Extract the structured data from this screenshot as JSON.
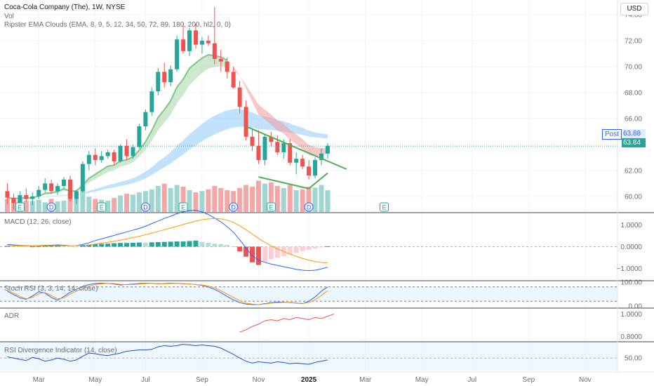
{
  "header": {
    "title": "Coca-Cola Company (The), 1W, NYSE",
    "vol_label": "Vol",
    "indicator_label": "Ripster EMA Clouds (EMA, 8, 9, 5, 12, 34, 50, 72, 89, 180, 200, hl2, 0, 0)",
    "currency": "USD"
  },
  "panes": {
    "macd_label": "MACD (12, 26, close)",
    "stoch_label": "Stoch RSI (3, 3, 14, 14, close)",
    "adr_label": "ADR",
    "rsi_div_label": "RSI Divergence Indicator (14, close)"
  },
  "price_tags": {
    "post_label": "Post",
    "post_price": "63.88",
    "last_price": "63.84"
  },
  "colors": {
    "up": "#26a69a",
    "down": "#ef5350",
    "vol_up": "#9fd6d1",
    "vol_down": "#f5a6a6",
    "ema_fast_cloud": "#a5d6a7",
    "ema_slow_cloud": "#90caf9",
    "ema_down_cloud": "#ef9a9a",
    "macd_line": "#2962ff",
    "signal_line": "#ff9800",
    "stoch_k": "#2962ff",
    "stoch_d": "#ff9800",
    "adr_line": "#ef5350",
    "rsi_div_line": "#1e4fc4",
    "trendline": "#4caf50",
    "earnings_marker": "#26a69a",
    "dividend_marker": "#2962ff"
  },
  "chart_data": [
    {
      "type": "candlestick",
      "title": "Coca-Cola Company (The), 1W, NYSE",
      "ylim": [
        58.8,
        74.6
      ],
      "yticks": [
        "74.00",
        "72.00",
        "70.00",
        "68.00",
        "66.00",
        "64.00",
        "62.00",
        "60.00"
      ],
      "ytick_values": [
        74,
        72,
        70,
        68,
        66,
        64,
        62,
        60
      ],
      "x_labels": [
        "Mar",
        "May",
        "Jul",
        "Sep",
        "Nov",
        "2025",
        "Mar",
        "May",
        "Jul",
        "Sep",
        "Nov"
      ],
      "x_label_weeks": [
        5,
        14,
        22,
        31,
        40,
        48,
        57,
        66,
        74,
        83,
        92
      ],
      "candles": [
        [
          60.4,
          61.0,
          59.4,
          59.9
        ],
        [
          59.9,
          60.2,
          59.0,
          59.5
        ],
        [
          59.5,
          60.4,
          59.2,
          60.1
        ],
        [
          60.1,
          60.6,
          59.6,
          59.8
        ],
        [
          59.8,
          60.3,
          59.3,
          60.0
        ],
        [
          60.0,
          60.8,
          59.8,
          60.5
        ],
        [
          60.5,
          61.4,
          60.3,
          61.0
        ],
        [
          61.0,
          61.3,
          60.2,
          60.4
        ],
        [
          60.4,
          61.0,
          60.1,
          60.8
        ],
        [
          60.8,
          61.5,
          60.6,
          61.3
        ],
        [
          61.3,
          61.6,
          59.6,
          59.8
        ],
        [
          59.8,
          60.5,
          59.4,
          60.4
        ],
        [
          60.4,
          62.7,
          60.3,
          62.5
        ],
        [
          62.5,
          63.5,
          62.0,
          63.2
        ],
        [
          63.2,
          63.7,
          62.4,
          62.8
        ],
        [
          62.8,
          63.5,
          62.6,
          63.1
        ],
        [
          63.1,
          63.6,
          62.9,
          63.4
        ],
        [
          63.4,
          63.6,
          62.4,
          62.7
        ],
        [
          62.7,
          64.0,
          62.6,
          63.9
        ],
        [
          63.9,
          64.4,
          62.8,
          63.1
        ],
        [
          63.1,
          64.0,
          62.9,
          63.8
        ],
        [
          63.8,
          65.6,
          63.7,
          65.4
        ],
        [
          65.4,
          66.7,
          65.1,
          66.5
        ],
        [
          66.5,
          68.4,
          66.2,
          68.1
        ],
        [
          68.1,
          69.9,
          67.8,
          69.6
        ],
        [
          69.6,
          70.3,
          68.4,
          68.8
        ],
        [
          68.8,
          70.1,
          68.5,
          69.8
        ],
        [
          69.8,
          72.4,
          69.6,
          72.1
        ],
        [
          72.1,
          73.4,
          71.0,
          71.2
        ],
        [
          71.2,
          73.0,
          70.8,
          72.8
        ],
        [
          72.8,
          73.3,
          71.4,
          71.7
        ],
        [
          71.7,
          72.3,
          71.0,
          72.0
        ],
        [
          72.0,
          72.4,
          71.6,
          71.8
        ],
        [
          71.8,
          74.6,
          70.2,
          70.6
        ],
        [
          70.6,
          71.3,
          69.6,
          70.4
        ],
        [
          70.4,
          70.7,
          69.1,
          69.6
        ],
        [
          69.6,
          70.0,
          68.3,
          68.4
        ],
        [
          68.4,
          68.9,
          66.4,
          66.9
        ],
        [
          66.9,
          67.4,
          64.3,
          64.6
        ],
        [
          64.6,
          65.2,
          63.5,
          63.9
        ],
        [
          63.9,
          65.1,
          62.5,
          62.8
        ],
        [
          62.8,
          64.8,
          62.4,
          64.6
        ],
        [
          64.6,
          65.0,
          63.9,
          64.2
        ],
        [
          64.2,
          64.7,
          63.2,
          63.4
        ],
        [
          63.4,
          64.4,
          62.9,
          64.1
        ],
        [
          64.1,
          64.4,
          62.4,
          62.6
        ],
        [
          62.6,
          63.4,
          61.7,
          62.9
        ],
        [
          62.9,
          63.2,
          62.1,
          62.3
        ],
        [
          62.3,
          62.8,
          61.3,
          61.6
        ],
        [
          61.6,
          63.0,
          61.4,
          62.8
        ],
        [
          62.8,
          63.7,
          62.4,
          63.3
        ],
        [
          63.3,
          64.1,
          62.9,
          63.9
        ]
      ],
      "volume": [
        0.3,
        0.28,
        0.27,
        0.26,
        0.25,
        0.28,
        0.22,
        0.3,
        0.24,
        0.26,
        0.45,
        0.3,
        0.55,
        0.35,
        0.3,
        0.28,
        0.26,
        0.32,
        0.38,
        0.42,
        0.4,
        0.45,
        0.48,
        0.52,
        0.6,
        0.65,
        0.55,
        0.62,
        0.58,
        0.5,
        0.45,
        0.48,
        0.52,
        0.6,
        0.55,
        0.5,
        0.48,
        0.55,
        0.62,
        0.58,
        0.72,
        0.65,
        0.68,
        0.6,
        0.55,
        0.62,
        0.5,
        0.52,
        0.58,
        0.56,
        0.62,
        0.5
      ],
      "events": [
        {
          "type": "E",
          "week": 2
        },
        {
          "type": "D",
          "week": 7
        },
        {
          "type": "E",
          "week": 15
        },
        {
          "type": "D",
          "week": 22
        },
        {
          "type": "E",
          "week": 28
        },
        {
          "type": "D",
          "week": 36
        },
        {
          "type": "E",
          "week": 42
        },
        {
          "type": "D",
          "week": 48
        },
        {
          "type": "E",
          "week": 60
        }
      ]
    },
    {
      "type": "line",
      "title": "MACD (12, 26, close)",
      "yticks": [
        "1.0000",
        "0.0000",
        "−1.0000"
      ],
      "ytick_values": [
        1.0,
        0.0,
        -1.0
      ],
      "ylim": [
        -1.5,
        1.5
      ],
      "histogram": [
        0.04,
        0.03,
        0.02,
        0.01,
        0.01,
        0.02,
        0.03,
        0.04,
        0.05,
        0.04,
        0.02,
        0.01,
        0.06,
        0.09,
        0.11,
        0.13,
        0.14,
        0.16,
        0.17,
        0.17,
        0.18,
        0.19,
        0.18,
        0.2,
        0.21,
        0.22,
        0.23,
        0.24,
        0.24,
        0.26,
        0.28,
        0.22,
        0.18,
        0.14,
        0.12,
        0.08,
        0.02,
        -0.22,
        -0.46,
        -0.72,
        -0.84,
        -0.7,
        -0.58,
        -0.5,
        -0.44,
        -0.36,
        -0.28,
        -0.2,
        -0.15,
        -0.09,
        -0.03,
        0.02
      ],
      "macd_line": [
        0.1,
        0.08,
        0.06,
        0.05,
        0.04,
        0.05,
        0.06,
        0.07,
        0.08,
        0.07,
        0.05,
        0.05,
        0.1,
        0.18,
        0.28,
        0.36,
        0.44,
        0.52,
        0.6,
        0.68,
        0.76,
        0.84,
        0.94,
        1.06,
        1.18,
        1.3,
        1.4,
        1.52,
        1.6,
        1.66,
        1.68,
        1.6,
        1.48,
        1.32,
        1.14,
        0.92,
        0.66,
        0.32,
        -0.06,
        -0.42,
        -0.62,
        -0.72,
        -0.8,
        -0.86,
        -0.92,
        -0.98,
        -1.04,
        -1.08,
        -1.1,
        -1.08,
        -1.02,
        -0.94
      ],
      "signal_line": [
        0.04,
        0.04,
        0.04,
        0.04,
        0.04,
        0.04,
        0.04,
        0.05,
        0.05,
        0.05,
        0.05,
        0.05,
        0.06,
        0.08,
        0.12,
        0.16,
        0.2,
        0.25,
        0.3,
        0.36,
        0.42,
        0.48,
        0.55,
        0.62,
        0.7,
        0.78,
        0.86,
        0.94,
        1.02,
        1.1,
        1.18,
        1.24,
        1.28,
        1.3,
        1.28,
        1.22,
        1.12,
        0.96,
        0.78,
        0.58,
        0.38,
        0.2,
        0.04,
        -0.1,
        -0.22,
        -0.34,
        -0.44,
        -0.54,
        -0.62,
        -0.68,
        -0.72,
        -0.74
      ]
    },
    {
      "type": "line",
      "title": "Stoch RSI (3, 3, 14, 14, close)",
      "yticks": [
        "100.00",
        "0.00"
      ],
      "ytick_values": [
        100,
        0
      ],
      "ylim": [
        0,
        100
      ],
      "k": [
        62,
        48,
        34,
        28,
        42,
        60,
        54,
        36,
        24,
        40,
        58,
        70,
        82,
        90,
        94,
        96,
        95,
        92,
        88,
        90,
        92,
        94,
        96,
        95,
        93,
        94,
        96,
        95,
        93,
        92,
        90,
        86,
        80,
        70,
        56,
        40,
        26,
        14,
        8,
        6,
        6,
        10,
        14,
        16,
        16,
        14,
        12,
        10,
        20,
        38,
        62,
        80
      ],
      "d": [
        66,
        54,
        40,
        30,
        36,
        52,
        56,
        44,
        30,
        34,
        50,
        62,
        74,
        84,
        90,
        93,
        95,
        94,
        91,
        89,
        90,
        92,
        94,
        95,
        94,
        93,
        94,
        95,
        94,
        92,
        90,
        88,
        84,
        76,
        64,
        50,
        36,
        22,
        12,
        8,
        6,
        8,
        12,
        14,
        15,
        15,
        13,
        11,
        14,
        26,
        44,
        64
      ]
    },
    {
      "type": "line",
      "title": "ADR",
      "yticks": [
        "1.0000",
        "0.8000"
      ],
      "ytick_values": [
        1.0,
        0.8
      ],
      "ylim": [
        0.76,
        1.04
      ],
      "x_start_week": 37,
      "values": [
        0.84,
        0.86,
        0.89,
        0.91,
        0.94,
        0.95,
        0.94,
        0.96,
        0.95,
        0.97,
        0.96,
        0.95,
        0.97,
        0.96,
        0.98,
        1.0
      ]
    },
    {
      "type": "line",
      "title": "RSI Divergence Indicator (14, close)",
      "yticks": [
        "50.00"
      ],
      "ytick_values": [
        50
      ],
      "ylim": [
        30,
        75
      ],
      "values": [
        52,
        50,
        48,
        46,
        51,
        49,
        45,
        47,
        50,
        48,
        45,
        47,
        53,
        58,
        57,
        55,
        54,
        56,
        58,
        61,
        62,
        63,
        63,
        64,
        68,
        70,
        69,
        70,
        72,
        71,
        70,
        71,
        70,
        69,
        66,
        61,
        56,
        50,
        45,
        42,
        44,
        43,
        42,
        44,
        43,
        41,
        42,
        41,
        40,
        43,
        45,
        47
      ]
    }
  ]
}
